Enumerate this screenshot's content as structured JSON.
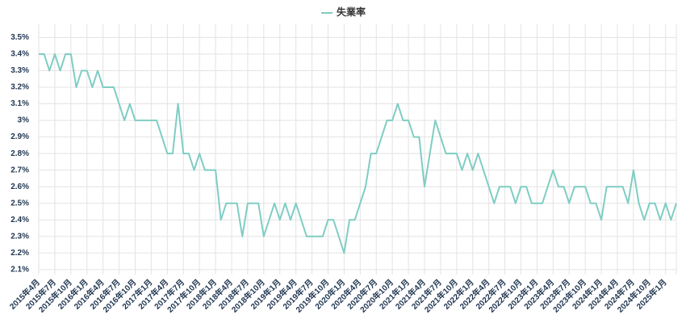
{
  "chart_data": {
    "type": "line",
    "categories": [
      "2015年4月",
      null,
      null,
      "2015年7月",
      null,
      null,
      "2015年10月",
      null,
      null,
      "2016年1月",
      null,
      null,
      "2016年4月",
      null,
      null,
      "2016年7月",
      null,
      null,
      "2016年10月",
      null,
      null,
      "2017年1月",
      null,
      null,
      "2017年4月",
      null,
      null,
      "2017年7月",
      null,
      null,
      "2017年10月",
      null,
      null,
      "2018年1月",
      null,
      null,
      "2018年4月",
      null,
      null,
      "2018年7月",
      null,
      null,
      "2018年10月",
      null,
      null,
      "2019年1月",
      null,
      null,
      "2019年4月",
      null,
      null,
      "2019年7月",
      null,
      null,
      "2019年10月",
      null,
      null,
      "2020年1月",
      null,
      null,
      "2020年4月",
      null,
      null,
      "2020年7月",
      null,
      null,
      "2020年10月",
      null,
      null,
      "2021年1月",
      null,
      null,
      "2021年4月",
      null,
      null,
      "2021年7月",
      null,
      null,
      "2021年10月",
      null,
      null,
      "2022年1月",
      null,
      null,
      "2022年4月",
      null,
      null,
      "2022年7月",
      null,
      null,
      "2022年10月",
      null,
      null,
      "2023年1月",
      null,
      null,
      "2023年4月",
      null,
      null,
      "2023年7月",
      null,
      null,
      "2023年10月",
      null,
      null,
      "2024年1月",
      null,
      null,
      "2024年4月",
      null,
      null,
      "2024年7月",
      null,
      null,
      "2024年10月",
      null,
      null,
      "2025年1月",
      null,
      null
    ],
    "series": [
      {
        "name": "失業率",
        "color": "#7fcdc3",
        "values": [
          3.4,
          3.4,
          3.3,
          3.4,
          3.3,
          3.4,
          3.4,
          3.2,
          3.3,
          3.3,
          3.2,
          3.3,
          3.2,
          3.2,
          3.2,
          3.1,
          3.0,
          3.1,
          3.0,
          3.0,
          3.0,
          3.0,
          3.0,
          2.9,
          2.8,
          2.8,
          3.1,
          2.8,
          2.8,
          2.7,
          2.8,
          2.7,
          2.7,
          2.7,
          2.4,
          2.5,
          2.5,
          2.5,
          2.3,
          2.5,
          2.5,
          2.5,
          2.3,
          2.4,
          2.5,
          2.4,
          2.5,
          2.4,
          2.5,
          2.4,
          2.3,
          2.3,
          2.3,
          2.3,
          2.4,
          2.4,
          2.3,
          2.2,
          2.4,
          2.4,
          2.5,
          2.6,
          2.8,
          2.8,
          2.9,
          3.0,
          3.0,
          3.1,
          3.0,
          3.0,
          2.9,
          2.9,
          2.6,
          2.8,
          3.0,
          2.9,
          2.8,
          2.8,
          2.8,
          2.7,
          2.8,
          2.7,
          2.8,
          2.7,
          2.6,
          2.5,
          2.6,
          2.6,
          2.6,
          2.5,
          2.6,
          2.6,
          2.5,
          2.5,
          2.5,
          2.6,
          2.7,
          2.6,
          2.6,
          2.5,
          2.6,
          2.6,
          2.6,
          2.5,
          2.5,
          2.4,
          2.6,
          2.6,
          2.6,
          2.6,
          2.5,
          2.7,
          2.5,
          2.4,
          2.5,
          2.5,
          2.4,
          2.5,
          2.4,
          2.5
        ]
      }
    ],
    "ylim": [
      2.07,
      3.58
    ],
    "yticks": [
      {
        "value": 2.1,
        "label": "2.1%"
      },
      {
        "value": 2.2,
        "label": "2.2%"
      },
      {
        "value": 2.3,
        "label": "2.3%"
      },
      {
        "value": 2.4,
        "label": "2.4%"
      },
      {
        "value": 2.5,
        "label": "2.5%"
      },
      {
        "value": 2.6,
        "label": "2.6%"
      },
      {
        "value": 2.7,
        "label": "2.7%"
      },
      {
        "value": 2.8,
        "label": "2.8%"
      },
      {
        "value": 2.9,
        "label": "2.9%"
      },
      {
        "value": 3,
        "label": "3%"
      },
      {
        "value": 3.1,
        "label": "3.1%"
      },
      {
        "value": 3.2,
        "label": "3.2%"
      },
      {
        "value": 3.3,
        "label": "3.3%"
      },
      {
        "value": 3.4,
        "label": "3.4%"
      },
      {
        "value": 3.5,
        "label": "3.5%"
      }
    ],
    "grid": true,
    "legend": "top"
  }
}
